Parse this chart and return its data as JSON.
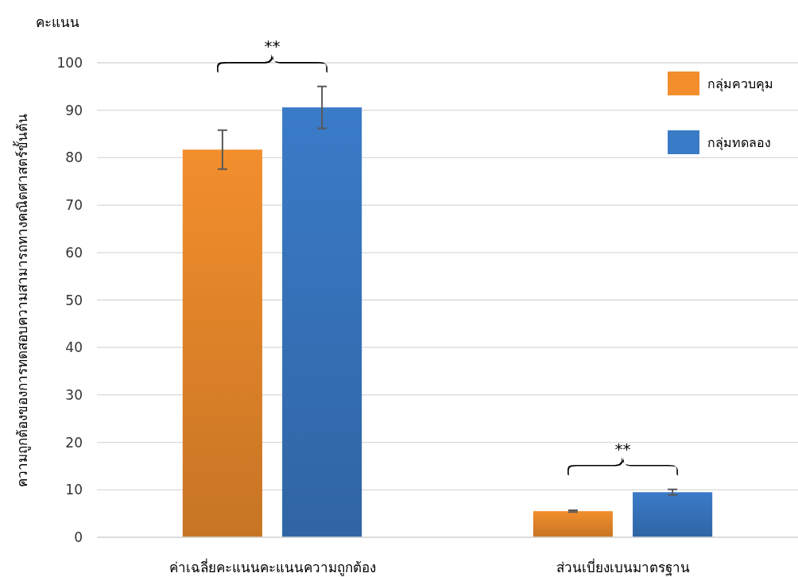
{
  "chart_data": {
    "type": "bar",
    "ylabel": "ความถูกต้องของการทดสอบความสามารถทางคณิตศาสตร์ขั้นต้น",
    "categories": [
      "ค่าเฉลี่ยคะแนนคะแนนความถูกต้อง",
      "ส่วนเบี่ยงเบนมาตรฐาน"
    ],
    "series": [
      {
        "name": "กลุ่มควบคุม",
        "color": "#f28e2c",
        "values": [
          81.7,
          5.5
        ],
        "errors": [
          4.1,
          0.2
        ]
      },
      {
        "name": "กลุ่มทดลอง",
        "color": "#3a7bc8",
        "values": [
          90.6,
          9.5
        ],
        "errors": [
          4.4,
          0.6
        ]
      }
    ],
    "ylim": [
      0,
      100
    ],
    "yticks": [
      0,
      10,
      20,
      30,
      40,
      50,
      60,
      70,
      80,
      90,
      100
    ],
    "grid": "y",
    "legend": "top right",
    "annotations": [
      "คะแนน",
      "**",
      "**"
    ]
  }
}
